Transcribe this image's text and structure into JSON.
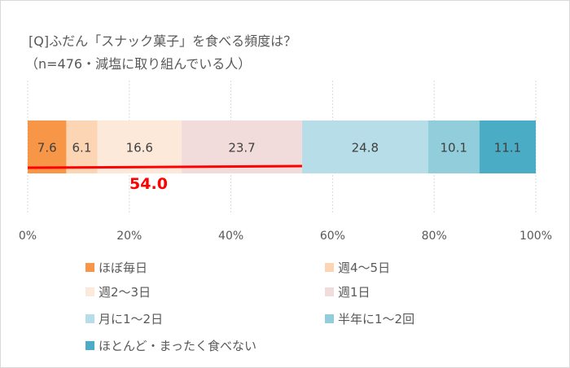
{
  "title": "[Q]ふだん「スナック菓子」を食べる頻度は？",
  "subtitle": "（n=476・減塩に取り組んでいる人）",
  "chart_data": {
    "type": "bar",
    "orientation": "horizontal-stacked-100",
    "series": [
      {
        "name": "ほぼ毎日",
        "value": 7.6,
        "color": "#F79646"
      },
      {
        "name": "週4～5日",
        "value": 6.1,
        "color": "#FCD5B5"
      },
      {
        "name": "週2～3日",
        "value": 16.6,
        "color": "#FDE9D9"
      },
      {
        "name": "週1日",
        "value": 23.7,
        "color": "#F2DCDB"
      },
      {
        "name": "月に1～2日",
        "value": 24.8,
        "color": "#B7DEE8"
      },
      {
        "name": "半年に1～2回",
        "value": 10.1,
        "color": "#92CDDC"
      },
      {
        "name": "ほとんど・まったく食べない",
        "value": 11.1,
        "color": "#4BACC6"
      }
    ],
    "xlim": [
      0,
      100
    ],
    "xticks": [
      "0%",
      "20%",
      "40%",
      "60%",
      "80%",
      "100%"
    ],
    "grid": true,
    "legend": "bottom",
    "annotation": {
      "label": "54.0",
      "from": 0,
      "to": 54.0,
      "color": "#FF0000"
    }
  }
}
